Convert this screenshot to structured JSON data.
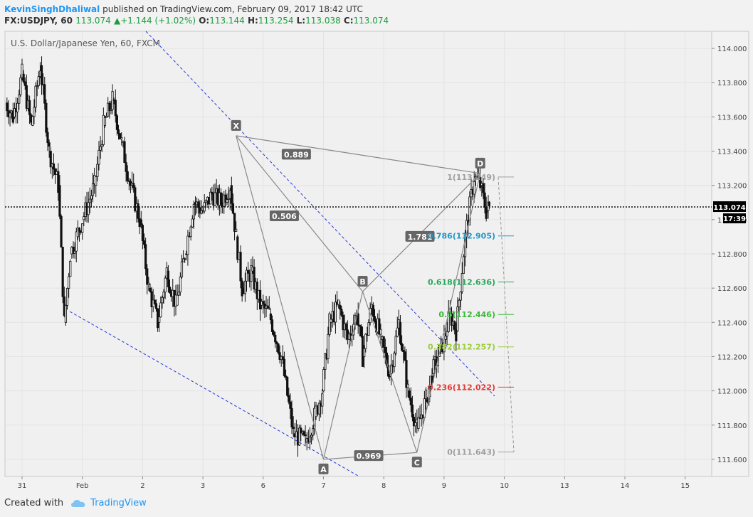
{
  "header": {
    "author": "KevinSinghDhaliwal",
    "published": " published on TradingView.com, February 09, 2017 18:42 UTC"
  },
  "ticker": {
    "symbol": "FX:USDJPY, 60",
    "last": "113.074",
    "change_arrow": "▲",
    "change": "+1.144 (+1.02%)",
    "o_label": "O:",
    "o": "113.144",
    "h_label": "H:",
    "h": "113.254",
    "l_label": "L:",
    "l": "113.038",
    "c_label": "C:",
    "c": "113.074"
  },
  "footer": {
    "created_with": "Created with",
    "brand": "TradingView",
    "icon": "cloud-icon"
  },
  "colors": {
    "up": "#1b9e3e",
    "author": "#2196f3",
    "trendline": "#2a3bd6",
    "pattern": "#888888",
    "candle": "#111111"
  },
  "chart_data": {
    "type": "candlestick",
    "title": "U.S. Dollar/Japanese Yen, 60, FXCM",
    "ylim": [
      111.5,
      114.1
    ],
    "y_ticks": [
      "114.000",
      "113.800",
      "113.600",
      "113.400",
      "113.200",
      "113.000",
      "112.800",
      "112.600",
      "112.400",
      "112.200",
      "112.000",
      "111.800",
      "111.600"
    ],
    "x_ticks": [
      "31",
      "Feb",
      "2",
      "3",
      "6",
      "7",
      "8",
      "9",
      "10",
      "13",
      "14",
      "15"
    ],
    "x_tick_pos": [
      0,
      1,
      2,
      3,
      4,
      5,
      6,
      7,
      8,
      9,
      10,
      11
    ],
    "current_price": {
      "value": 113.074,
      "label": "113.074",
      "countdown": "17:39"
    },
    "series": [
      {
        "kind": "ohlc-trace",
        "x": [
          -0.3,
          -0.15,
          0,
          0.15,
          0.3,
          0.45,
          0.6,
          0.7,
          0.8,
          0.9,
          1.0,
          1.1,
          1.2,
          1.35,
          1.5,
          1.65,
          1.8,
          1.95,
          2.1,
          2.25,
          2.4,
          2.55,
          2.7,
          2.85,
          3.0,
          3.15,
          3.3,
          3.45,
          3.55,
          3.65,
          3.8,
          3.95,
          4.1,
          4.3,
          4.5,
          4.7,
          4.85,
          4.98,
          5.1,
          5.25,
          5.4,
          5.55,
          5.65,
          5.8,
          5.95,
          6.1,
          6.25,
          6.4,
          6.55,
          6.7,
          6.8,
          6.9,
          7.0,
          7.1,
          7.2,
          7.35,
          7.5,
          7.6,
          7.7,
          7.75
        ],
        "y": [
          113.7,
          113.6,
          113.85,
          113.55,
          113.9,
          113.4,
          113.2,
          112.4,
          112.8,
          112.9,
          113.0,
          113.1,
          113.2,
          113.55,
          113.7,
          113.45,
          113.2,
          113.0,
          112.6,
          112.4,
          112.7,
          112.5,
          112.8,
          113.1,
          113.05,
          113.15,
          113.1,
          113.2,
          112.9,
          112.6,
          112.7,
          112.5,
          112.45,
          112.2,
          111.75,
          111.7,
          111.85,
          112.0,
          112.4,
          112.5,
          112.3,
          112.45,
          112.2,
          112.5,
          112.3,
          112.1,
          112.4,
          112.0,
          111.78,
          111.95,
          112.1,
          112.2,
          112.3,
          112.45,
          112.35,
          112.9,
          113.25,
          113.2,
          113.05,
          113.07
        ]
      }
    ],
    "harmonic_points": [
      {
        "label": "X",
        "x": 3.55,
        "y": 113.49
      },
      {
        "label": "A",
        "x": 5.0,
        "y": 111.6
      },
      {
        "label": "B",
        "x": 5.65,
        "y": 112.58
      },
      {
        "label": "C",
        "x": 6.55,
        "y": 111.64
      },
      {
        "label": "D",
        "x": 7.6,
        "y": 113.27
      }
    ],
    "ratios": [
      {
        "label": "0.889",
        "x": 4.55,
        "y": 113.38
      },
      {
        "label": "0.506",
        "x": 4.35,
        "y": 113.02
      },
      {
        "label": "1.781",
        "x": 6.6,
        "y": 112.9
      },
      {
        "label": "0.969",
        "x": 5.75,
        "y": 111.62
      }
    ],
    "fib_levels": [
      {
        "label": "1(113.249)",
        "value": 113.249,
        "color": "#9e9e9e"
      },
      {
        "label": "0.786(112.905)",
        "value": 112.905,
        "color": "#2196c8"
      },
      {
        "label": "0.618(112.636)",
        "value": 112.636,
        "color": "#26a65b"
      },
      {
        "label": "0.5(112.446)",
        "value": 112.446,
        "color": "#3cb83c"
      },
      {
        "label": "0.382(112.257)",
        "value": 112.257,
        "color": "#9ccc3c"
      },
      {
        "label": "0.236(112.022)",
        "value": 112.022,
        "color": "#e53935"
      },
      {
        "label": "0(111.643)",
        "value": 111.643,
        "color": "#9e9e9e"
      }
    ]
  }
}
